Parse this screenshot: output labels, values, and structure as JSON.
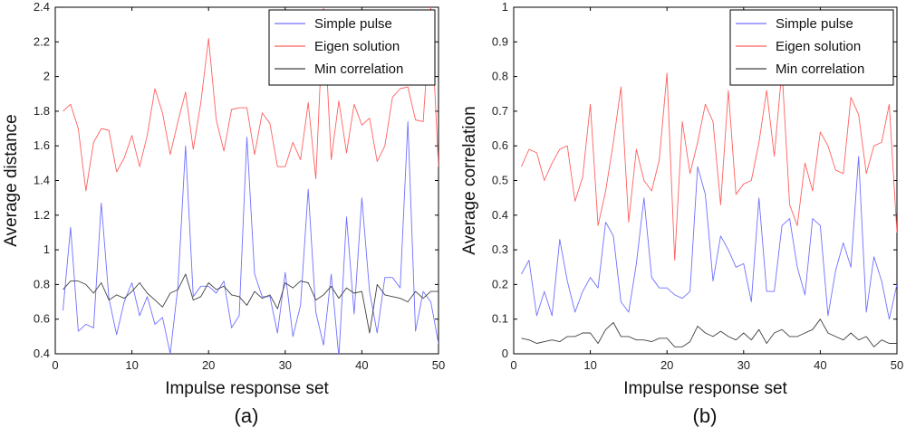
{
  "chart_data": [
    {
      "type": "line",
      "caption": "(a)",
      "xlabel": "Impulse response set",
      "ylabel": "Average distance",
      "xlim": [
        0,
        50
      ],
      "ylim": [
        0.4,
        2.4
      ],
      "xticks": [
        0,
        10,
        20,
        30,
        40,
        50
      ],
      "yticks": [
        0.4,
        0.6,
        0.8,
        1,
        1.2,
        1.4,
        1.6,
        1.8,
        2,
        2.2,
        2.4
      ],
      "ytick_labels": [
        "0.4",
        "0.6",
        "0.8",
        "1",
        "1.2",
        "1.4",
        "1.6",
        "1.8",
        "2",
        "2.2",
        "2.4"
      ],
      "legend_location": "top-right",
      "x": [
        1,
        2,
        3,
        4,
        5,
        6,
        7,
        8,
        9,
        10,
        11,
        12,
        13,
        14,
        15,
        16,
        17,
        18,
        19,
        20,
        21,
        22,
        23,
        24,
        25,
        26,
        27,
        28,
        29,
        30,
        31,
        32,
        33,
        34,
        35,
        36,
        37,
        38,
        39,
        40,
        41,
        42,
        43,
        44,
        45,
        46,
        47,
        48,
        49,
        50
      ],
      "series": [
        {
          "name": "Simple pulse",
          "color": "#7070ff",
          "values": [
            0.65,
            1.13,
            0.53,
            0.57,
            0.55,
            1.27,
            0.72,
            0.51,
            0.7,
            0.81,
            0.62,
            0.73,
            0.57,
            0.61,
            0.4,
            0.79,
            1.6,
            0.73,
            0.79,
            0.79,
            0.75,
            0.82,
            0.55,
            0.62,
            1.65,
            0.86,
            0.73,
            0.73,
            0.52,
            0.87,
            0.5,
            0.68,
            1.35,
            0.64,
            0.45,
            0.86,
            0.38,
            1.19,
            0.63,
            1.3,
            0.76,
            0.52,
            0.84,
            0.84,
            0.78,
            1.74,
            0.53,
            0.76,
            0.7,
            0.46
          ]
        },
        {
          "name": "Eigen solution",
          "color": "#ff6060",
          "values": [
            1.8,
            1.84,
            1.7,
            1.34,
            1.62,
            1.7,
            1.69,
            1.45,
            1.53,
            1.66,
            1.48,
            1.66,
            1.93,
            1.79,
            1.55,
            1.74,
            1.91,
            1.58,
            1.85,
            2.22,
            1.75,
            1.57,
            1.81,
            1.82,
            1.82,
            1.55,
            1.79,
            1.73,
            1.48,
            1.48,
            1.62,
            1.52,
            1.85,
            1.41,
            2.4,
            1.52,
            1.86,
            1.56,
            1.84,
            1.72,
            1.76,
            1.51,
            1.6,
            1.88,
            1.93,
            1.94,
            1.75,
            1.74,
            2.4,
            1.48
          ]
        },
        {
          "name": "Min correlation",
          "color": "#404040",
          "values": [
            0.77,
            0.82,
            0.82,
            0.8,
            0.75,
            0.81,
            0.71,
            0.74,
            0.72,
            0.76,
            0.81,
            0.75,
            0.71,
            0.67,
            0.75,
            0.77,
            0.86,
            0.71,
            0.73,
            0.81,
            0.77,
            0.79,
            0.74,
            0.73,
            0.68,
            0.76,
            0.72,
            0.74,
            0.66,
            0.81,
            0.78,
            0.82,
            0.81,
            0.71,
            0.74,
            0.79,
            0.72,
            0.78,
            0.75,
            0.76,
            0.52,
            0.8,
            0.74,
            0.73,
            0.72,
            0.7,
            0.76,
            0.72,
            0.76,
            0.76
          ]
        }
      ]
    },
    {
      "type": "line",
      "caption": "(b)",
      "xlabel": "Impulse response set",
      "ylabel": "Average correlation",
      "xlim": [
        0,
        50
      ],
      "ylim": [
        0,
        1
      ],
      "xticks": [
        0,
        10,
        20,
        30,
        40,
        50
      ],
      "yticks": [
        0,
        0.1,
        0.2,
        0.3,
        0.4,
        0.5,
        0.6,
        0.7,
        0.8,
        0.9,
        1
      ],
      "ytick_labels": [
        "0",
        "0.1",
        "0.2",
        "0.3",
        "0.4",
        "0.5",
        "0.6",
        "0.7",
        "0.8",
        "0.9",
        "1"
      ],
      "legend_location": "top-right",
      "x": [
        1,
        2,
        3,
        4,
        5,
        6,
        7,
        8,
        9,
        10,
        11,
        12,
        13,
        14,
        15,
        16,
        17,
        18,
        19,
        20,
        21,
        22,
        23,
        24,
        25,
        26,
        27,
        28,
        29,
        30,
        31,
        32,
        33,
        34,
        35,
        36,
        37,
        38,
        39,
        40,
        41,
        42,
        43,
        44,
        45,
        46,
        47,
        48,
        49,
        50
      ],
      "series": [
        {
          "name": "Simple pulse",
          "color": "#7070ff",
          "values": [
            0.23,
            0.27,
            0.11,
            0.18,
            0.11,
            0.33,
            0.21,
            0.12,
            0.18,
            0.22,
            0.19,
            0.38,
            0.34,
            0.15,
            0.12,
            0.26,
            0.45,
            0.22,
            0.19,
            0.19,
            0.17,
            0.16,
            0.18,
            0.54,
            0.46,
            0.21,
            0.34,
            0.3,
            0.25,
            0.26,
            0.15,
            0.45,
            0.18,
            0.18,
            0.37,
            0.39,
            0.25,
            0.17,
            0.39,
            0.37,
            0.11,
            0.24,
            0.32,
            0.25,
            0.57,
            0.12,
            0.28,
            0.21,
            0.1,
            0.2
          ]
        },
        {
          "name": "Eigen solution",
          "color": "#ff6060",
          "values": [
            0.54,
            0.59,
            0.58,
            0.5,
            0.55,
            0.59,
            0.6,
            0.44,
            0.51,
            0.72,
            0.37,
            0.47,
            0.61,
            0.77,
            0.38,
            0.59,
            0.5,
            0.47,
            0.56,
            0.81,
            0.27,
            0.67,
            0.52,
            0.61,
            0.72,
            0.67,
            0.43,
            0.76,
            0.46,
            0.49,
            0.5,
            0.61,
            0.76,
            0.57,
            0.82,
            0.43,
            0.37,
            0.55,
            0.47,
            0.64,
            0.6,
            0.53,
            0.52,
            0.74,
            0.69,
            0.52,
            0.6,
            0.61,
            0.72,
            0.35
          ]
        },
        {
          "name": "Min correlation",
          "color": "#404040",
          "values": [
            0.045,
            0.04,
            0.03,
            0.035,
            0.04,
            0.035,
            0.05,
            0.05,
            0.06,
            0.06,
            0.03,
            0.07,
            0.09,
            0.05,
            0.05,
            0.04,
            0.04,
            0.035,
            0.045,
            0.045,
            0.02,
            0.02,
            0.035,
            0.08,
            0.06,
            0.05,
            0.065,
            0.05,
            0.04,
            0.06,
            0.04,
            0.07,
            0.03,
            0.06,
            0.07,
            0.05,
            0.05,
            0.06,
            0.07,
            0.1,
            0.06,
            0.05,
            0.04,
            0.06,
            0.04,
            0.05,
            0.02,
            0.04,
            0.03,
            0.03
          ]
        }
      ]
    }
  ]
}
